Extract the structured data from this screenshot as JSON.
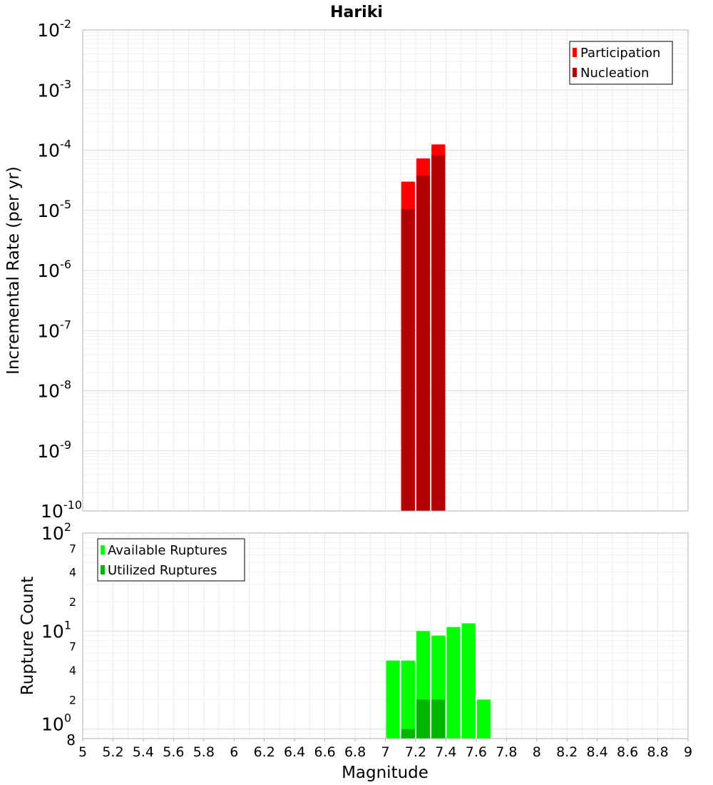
{
  "chart_data": [
    {
      "type": "bar",
      "title": "Hariki",
      "xlabel": "",
      "ylabel": "Incremental Rate (per yr)",
      "yscale": "log",
      "ylim": [
        1e-10,
        0.01
      ],
      "xlim": [
        5,
        9
      ],
      "y_ticks": [
        {
          "base": "10",
          "exp": "-10"
        },
        {
          "base": "10",
          "exp": "-9"
        },
        {
          "base": "10",
          "exp": "-8"
        },
        {
          "base": "10",
          "exp": "-7"
        },
        {
          "base": "10",
          "exp": "-6"
        },
        {
          "base": "10",
          "exp": "-5"
        },
        {
          "base": "10",
          "exp": "-4"
        },
        {
          "base": "10",
          "exp": "-3"
        },
        {
          "base": "10",
          "exp": "-2"
        }
      ],
      "legend_position": "top-right",
      "series": [
        {
          "name": "Participation",
          "color": "#ff0000",
          "points": [
            {
              "x": 7.15,
              "y": 3e-05
            },
            {
              "x": 7.25,
              "y": 7.3e-05
            },
            {
              "x": 7.35,
              "y": 0.000125
            }
          ]
        },
        {
          "name": "Nucleation",
          "color": "#b40000",
          "points": [
            {
              "x": 7.15,
              "y": 1.05e-05
            },
            {
              "x": 7.25,
              "y": 3.8e-05
            },
            {
              "x": 7.35,
              "y": 8.3e-05
            }
          ]
        }
      ]
    },
    {
      "type": "bar",
      "title": "",
      "xlabel": "Magnitude",
      "ylabel": "Rupture Count",
      "yscale": "log",
      "ylim": [
        0.8,
        100
      ],
      "xlim": [
        5,
        9
      ],
      "x_ticks": [
        "5",
        "5.2",
        "5.4",
        "5.6",
        "5.8",
        "6",
        "6.2",
        "6.4",
        "6.6",
        "6.8",
        "7",
        "7.2",
        "7.4",
        "7.6",
        "7.8",
        "8",
        "8.2",
        "8.4",
        "8.6",
        "8.8",
        "9"
      ],
      "y_major_ticks": [
        {
          "base": "10",
          "exp": "0",
          "value": 1
        },
        {
          "base": "10",
          "exp": "1",
          "value": 10
        },
        {
          "base": "10",
          "exp": "2",
          "value": 100
        }
      ],
      "y_minor_ticks": [
        {
          "label": "8",
          "value": 0.8
        },
        {
          "label": "2",
          "value": 2
        },
        {
          "label": "4",
          "value": 4
        },
        {
          "label": "7",
          "value": 7
        },
        {
          "label": "2",
          "value": 20
        },
        {
          "label": "4",
          "value": 40
        },
        {
          "label": "7",
          "value": 70
        }
      ],
      "legend_position": "top-left",
      "series": [
        {
          "name": "Available Ruptures",
          "color": "#00ff00",
          "points": [
            {
              "x": 7.05,
              "y": 5
            },
            {
              "x": 7.15,
              "y": 5
            },
            {
              "x": 7.25,
              "y": 10
            },
            {
              "x": 7.35,
              "y": 9
            },
            {
              "x": 7.45,
              "y": 11
            },
            {
              "x": 7.55,
              "y": 12
            },
            {
              "x": 7.65,
              "y": 2
            }
          ]
        },
        {
          "name": "Utilized Ruptures",
          "color": "#00b400",
          "points": [
            {
              "x": 7.15,
              "y": 1
            },
            {
              "x": 7.25,
              "y": 2
            },
            {
              "x": 7.35,
              "y": 2
            }
          ]
        }
      ]
    }
  ]
}
